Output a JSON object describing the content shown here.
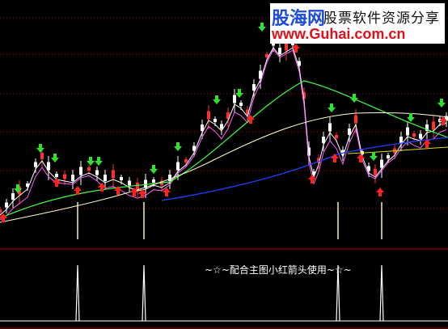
{
  "watermark": {
    "brand": "股海网",
    "tagline": "股票软件资源分享",
    "url": "www.Guhai.com.cn"
  },
  "caption": "~☆~配合主图小红箭头使用~☆~",
  "colors": {
    "background": "#000000",
    "candle": "#ffffff",
    "candle_up": "#ff3030",
    "ma_fast": "#ffffff",
    "ma_mid": "#ff60ff",
    "ma_slow": "#40ff40",
    "ma_long": "#ffffcc",
    "ma_blue": "#2040ff",
    "ma_yellow": "#e0e000",
    "grid": "#b00000",
    "buy_arrow": "#ff2020",
    "sell_arrow": "#30e030",
    "signal_line": "#ffffcc"
  }
}
